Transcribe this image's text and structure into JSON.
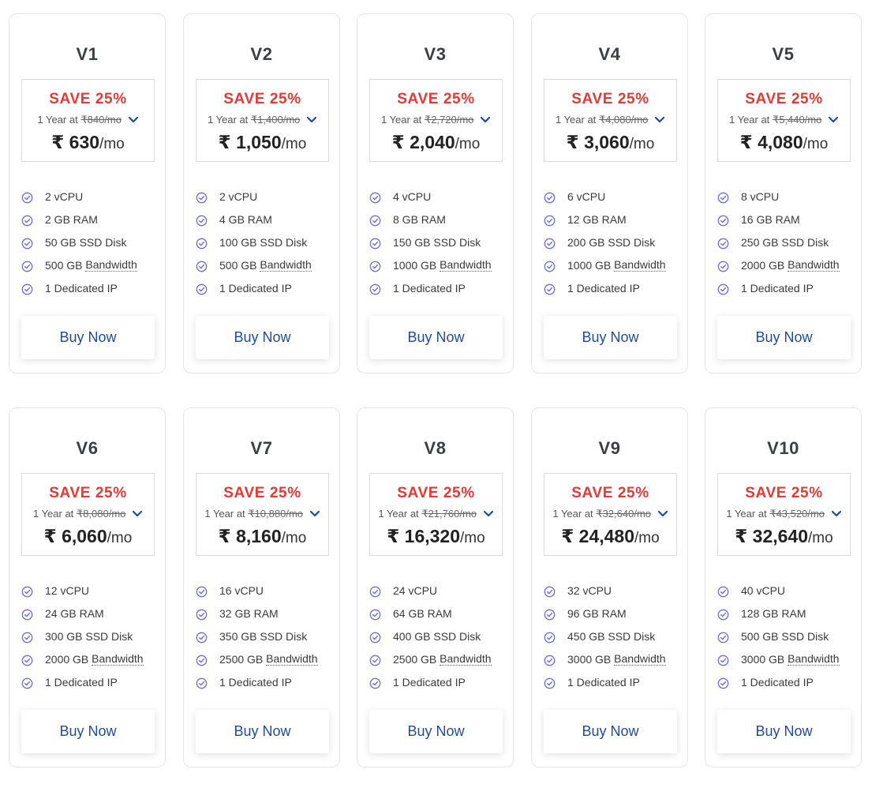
{
  "colors": {
    "save": "#e53935",
    "button_text": "#1f4b99",
    "check": "#6a6fd1"
  },
  "icons": {
    "feature": "check-circle-icon",
    "term": "chevron-down-icon"
  },
  "plans": [
    {
      "name": "V1",
      "save": "SAVE 25%",
      "term_prefix": "1 Year at",
      "original": "₹840/mo",
      "currency": "₹",
      "price": "630",
      "per": "/mo",
      "features": [
        "2 vCPU",
        "2 GB RAM",
        "50 GB SSD Disk",
        {
          "amount": "500 GB",
          "link": "Bandwidth"
        },
        "1 Dedicated IP"
      ],
      "button": "Buy Now"
    },
    {
      "name": "V2",
      "save": "SAVE 25%",
      "term_prefix": "1 Year at",
      "original": "₹1,400/mo",
      "currency": "₹",
      "price": "1,050",
      "per": "/mo",
      "features": [
        "2 vCPU",
        "4 GB RAM",
        "100 GB SSD Disk",
        {
          "amount": "500 GB",
          "link": "Bandwidth"
        },
        "1 Dedicated IP"
      ],
      "button": "Buy Now"
    },
    {
      "name": "V3",
      "save": "SAVE 25%",
      "term_prefix": "1 Year at",
      "original": "₹2,720/mo",
      "currency": "₹",
      "price": "2,040",
      "per": "/mo",
      "features": [
        "4 vCPU",
        "8 GB RAM",
        "150 GB SSD Disk",
        {
          "amount": "1000 GB",
          "link": "Bandwidth"
        },
        "1 Dedicated IP"
      ],
      "button": "Buy Now"
    },
    {
      "name": "V4",
      "save": "SAVE 25%",
      "term_prefix": "1 Year at",
      "original": "₹4,080/mo",
      "currency": "₹",
      "price": "3,060",
      "per": "/mo",
      "features": [
        "6 vCPU",
        "12 GB RAM",
        "200 GB SSD Disk",
        {
          "amount": "1000 GB",
          "link": "Bandwidth"
        },
        "1 Dedicated IP"
      ],
      "button": "Buy Now"
    },
    {
      "name": "V5",
      "save": "SAVE 25%",
      "term_prefix": "1 Year at",
      "original": "₹5,440/mo",
      "currency": "₹",
      "price": "4,080",
      "per": "/mo",
      "features": [
        "8 vCPU",
        "16 GB RAM",
        "250 GB SSD Disk",
        {
          "amount": "2000 GB",
          "link": "Bandwidth"
        },
        "1 Dedicated IP"
      ],
      "button": "Buy Now"
    },
    {
      "name": "V6",
      "save": "SAVE 25%",
      "term_prefix": "1 Year at",
      "original": "₹8,080/mo",
      "currency": "₹",
      "price": "6,060",
      "per": "/mo",
      "features": [
        "12 vCPU",
        "24 GB RAM",
        "300 GB SSD Disk",
        {
          "amount": "2000 GB",
          "link": "Bandwidth"
        },
        "1 Dedicated IP"
      ],
      "button": "Buy Now"
    },
    {
      "name": "V7",
      "save": "SAVE 25%",
      "term_prefix": "1 Year at",
      "original": "₹10,880/mo",
      "currency": "₹",
      "price": "8,160",
      "per": "/mo",
      "features": [
        "16 vCPU",
        "32 GB RAM",
        "350 GB SSD Disk",
        {
          "amount": "2500 GB",
          "link": "Bandwidth"
        },
        "1 Dedicated IP"
      ],
      "button": "Buy Now"
    },
    {
      "name": "V8",
      "save": "SAVE 25%",
      "term_prefix": "1 Year at",
      "original": "₹21,760/mo",
      "currency": "₹",
      "price": "16,320",
      "per": "/mo",
      "features": [
        "24 vCPU",
        "64 GB RAM",
        "400 GB SSD Disk",
        {
          "amount": "2500 GB",
          "link": "Bandwidth"
        },
        "1 Dedicated IP"
      ],
      "button": "Buy Now"
    },
    {
      "name": "V9",
      "save": "SAVE 25%",
      "term_prefix": "1 Year at",
      "original": "₹32,640/mo",
      "currency": "₹",
      "price": "24,480",
      "per": "/mo",
      "features": [
        "32 vCPU",
        "96 GB RAM",
        "450 GB SSD Disk",
        {
          "amount": "3000 GB",
          "link": "Bandwidth"
        },
        "1 Dedicated IP"
      ],
      "button": "Buy Now"
    },
    {
      "name": "V10",
      "save": "SAVE 25%",
      "term_prefix": "1 Year at",
      "original": "₹43,520/mo",
      "currency": "₹",
      "price": "32,640",
      "per": "/mo",
      "features": [
        "40 vCPU",
        "128 GB RAM",
        "500 GB SSD Disk",
        {
          "amount": "3000 GB",
          "link": "Bandwidth"
        },
        "1 Dedicated IP"
      ],
      "button": "Buy Now"
    }
  ]
}
